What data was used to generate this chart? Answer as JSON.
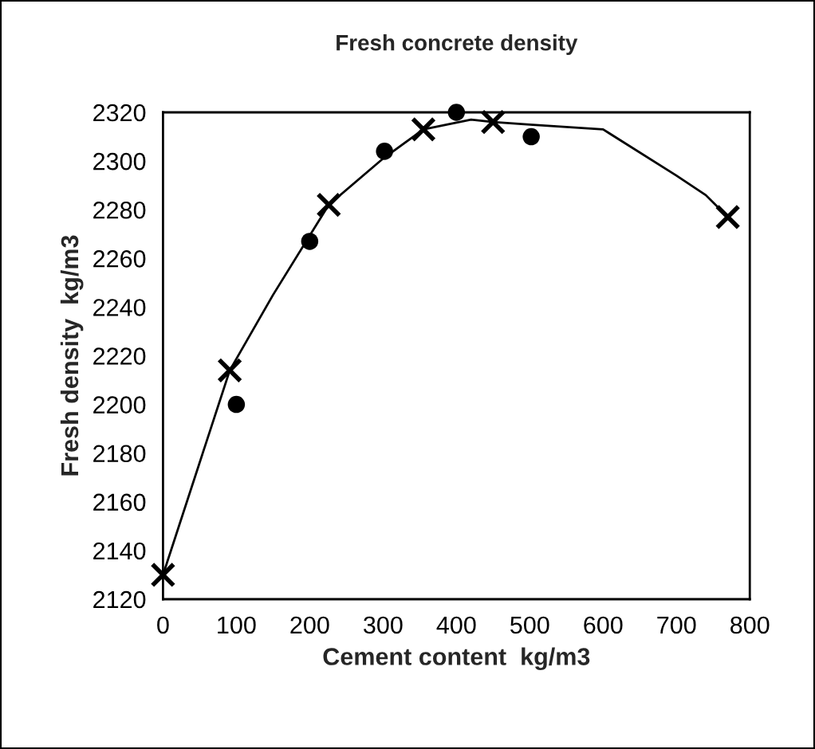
{
  "chart_data": {
    "type": "scatter",
    "title": "Fresh concrete density",
    "xlabel": "Cement content  kg/m3",
    "ylabel": "Fresh density  kg/m3",
    "xlim": [
      0,
      800
    ],
    "xticks": [
      0,
      100,
      200,
      300,
      400,
      500,
      600,
      700,
      800
    ],
    "ylim": [
      2120,
      2320
    ],
    "yticks": [
      2120,
      2140,
      2160,
      2180,
      2200,
      2220,
      2240,
      2260,
      2280,
      2300,
      2320
    ],
    "grid": false,
    "legend": false,
    "series": [
      {
        "type": "line",
        "color": "#000000",
        "marker": "none",
        "line_style": "solid",
        "x": [
          0,
          91,
          150,
          226,
          300,
          355,
          420,
          450,
          500,
          600,
          700,
          740,
          770
        ],
        "values": [
          2130,
          2214,
          2245,
          2282,
          2301,
          2313,
          2317,
          2316,
          2315,
          2313,
          2294,
          2286,
          2277
        ]
      },
      {
        "color": "#000000",
        "marker": "cross",
        "x": [
          0,
          91,
          226,
          355,
          450,
          770
        ],
        "values": [
          2130,
          2214,
          2282,
          2313,
          2316,
          2277
        ]
      },
      {
        "color": "#000000",
        "marker": "circle",
        "x": [
          100,
          200,
          302,
          400,
          502
        ],
        "values": [
          2200,
          2267,
          2304,
          2320,
          2310
        ]
      }
    ]
  }
}
